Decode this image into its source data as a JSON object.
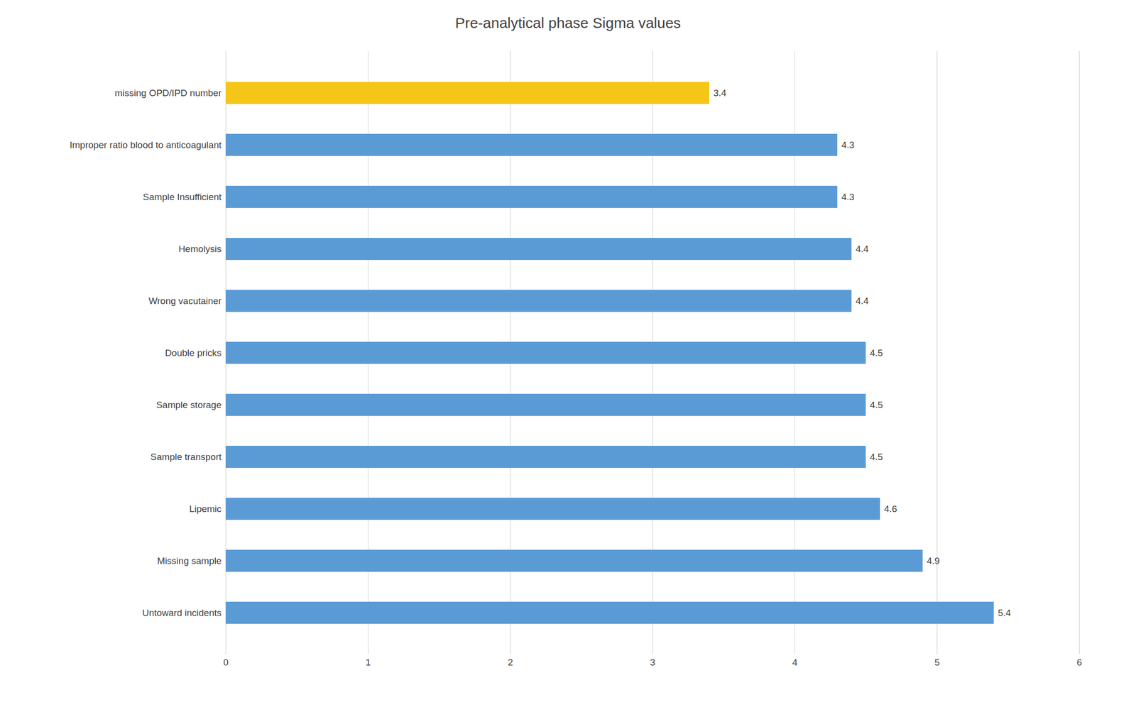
{
  "chart_data": {
    "type": "bar",
    "orientation": "horizontal",
    "title": "Pre-analytical phase Sigma values",
    "categories": [
      "missing OPD/IPD number",
      "Improper ratio blood to anticoagulant",
      "Sample Insufficient",
      "Hemolysis",
      "Wrong vacutainer",
      "Double pricks",
      "Sample storage",
      "Sample transport",
      "Lipemic",
      "Missing sample",
      "Untoward incidents"
    ],
    "values": [
      3.4,
      4.3,
      4.3,
      4.4,
      4.4,
      4.5,
      4.5,
      4.5,
      4.6,
      4.9,
      5.4
    ],
    "colors": [
      "#F5C518",
      "#5B9BD5",
      "#5B9BD5",
      "#5B9BD5",
      "#5B9BD5",
      "#5B9BD5",
      "#5B9BD5",
      "#5B9BD5",
      "#5B9BD5",
      "#5B9BD5",
      "#5B9BD5"
    ],
    "xlim": [
      0,
      6
    ],
    "xticks": [
      0,
      1,
      2,
      3,
      4,
      5,
      6
    ],
    "grid": true,
    "data_labels": true
  }
}
